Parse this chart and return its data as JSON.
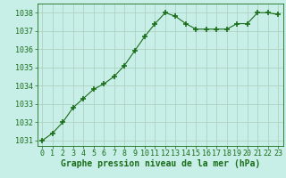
{
  "x": [
    0,
    1,
    2,
    3,
    4,
    5,
    6,
    7,
    8,
    9,
    10,
    11,
    12,
    13,
    14,
    15,
    16,
    17,
    18,
    19,
    20,
    21,
    22,
    23
  ],
  "y": [
    1031.0,
    1031.4,
    1032.0,
    1032.8,
    1033.3,
    1033.8,
    1034.1,
    1034.5,
    1035.1,
    1035.9,
    1036.7,
    1037.4,
    1038.0,
    1037.8,
    1037.4,
    1037.1,
    1037.1,
    1037.1,
    1037.1,
    1037.4,
    1037.4,
    1038.0,
    1038.0,
    1037.9
  ],
  "ylim": [
    1030.7,
    1038.5
  ],
  "yticks": [
    1031,
    1032,
    1033,
    1034,
    1035,
    1036,
    1037,
    1038
  ],
  "xticks": [
    0,
    1,
    2,
    3,
    4,
    5,
    6,
    7,
    8,
    9,
    10,
    11,
    12,
    13,
    14,
    15,
    16,
    17,
    18,
    19,
    20,
    21,
    22,
    23
  ],
  "xlabel": "Graphe pression niveau de la mer (hPa)",
  "line_color": "#1a6e1a",
  "marker_color": "#1a6e1a",
  "bg_color": "#c8eee8",
  "grid_color": "#aaccbb",
  "label_color": "#1a6e1a",
  "tick_color": "#1a6e1a",
  "xlabel_fontsize": 7.0,
  "tick_fontsize": 6.0
}
